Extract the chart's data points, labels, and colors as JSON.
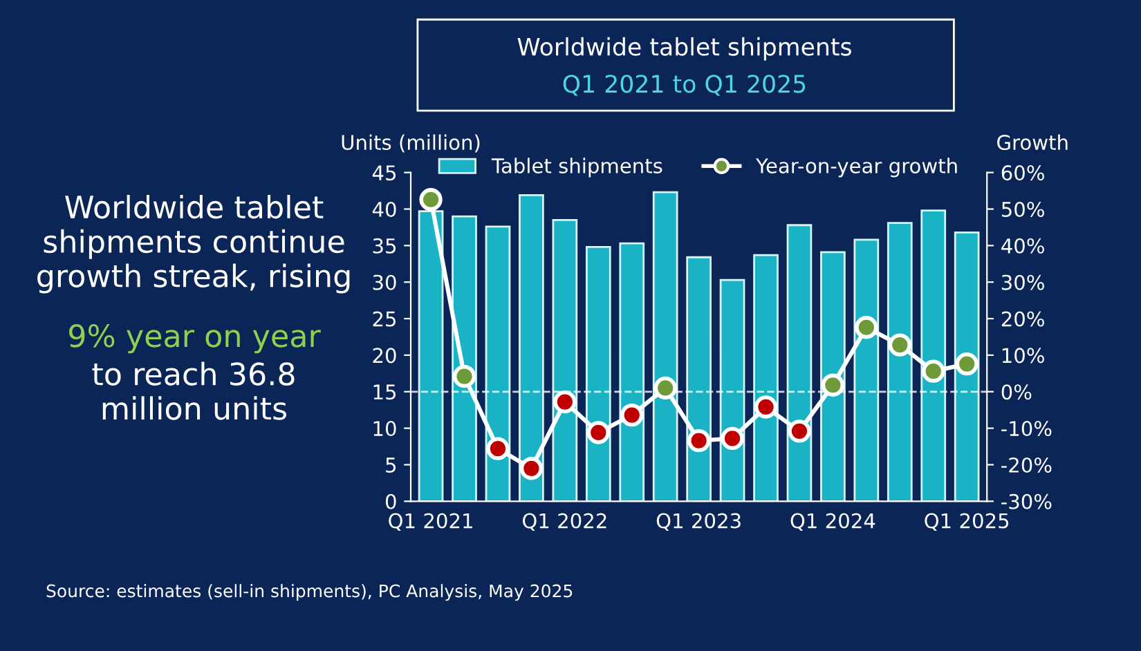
{
  "chart_data": {
    "type": "bar",
    "title": "Worldwide tablet shipments",
    "subtitle": "Q1 2021 to Q1 2025",
    "ylabel": "Units (million)",
    "y2label": "Growth",
    "categories": [
      "Q1 2021",
      null,
      null,
      null,
      "Q1 2022",
      null,
      null,
      null,
      "Q1 2023",
      null,
      null,
      null,
      "Q1 2024",
      null,
      null,
      null,
      "Q1 2025"
    ],
    "series": [
      {
        "name": "Tablet shipments",
        "color": "#1ab3c6",
        "values": [
          39.7,
          39.0,
          37.6,
          41.9,
          38.5,
          34.8,
          35.3,
          42.3,
          33.4,
          30.3,
          33.7,
          37.8,
          34.1,
          35.8,
          38.1,
          39.8,
          36.8
        ]
      },
      {
        "name": "Year-on-year growth",
        "type": "line",
        "axis": "y2",
        "color": "#ffffff",
        "marker": "circle",
        "line_style": "solid",
        "colors": [
          "#6e9a3a",
          "#6e9a3a",
          "#c00000",
          "#c00000",
          "#c00000",
          "#c00000",
          "#c00000",
          "#6e9a3a",
          "#c00000",
          "#c00000",
          "#c00000",
          "#c00000",
          "#6e9a3a",
          "#6e9a3a",
          "#6e9a3a",
          "#6e9a3a",
          "#6e9a3a"
        ],
        "values": [
          52.6,
          4.2,
          -15.6,
          -21,
          -2.8,
          -11.2,
          -6.4,
          1,
          -13.4,
          -12.8,
          -4.2,
          -10.8,
          1.8,
          17.6,
          12.8,
          5.6,
          7.6
        ]
      }
    ],
    "ylim": [
      0,
      45
    ],
    "yticks": [
      0,
      5,
      10,
      15,
      20,
      25,
      30,
      35,
      40,
      45
    ],
    "y2lim": [
      -30,
      60
    ],
    "y2ticks": [
      {
        "value": -30,
        "label": "-30%"
      },
      {
        "value": -20,
        "label": "-20%"
      },
      {
        "value": -10,
        "label": "-10%"
      },
      {
        "value": 0,
        "label": "0%"
      },
      {
        "value": 10,
        "label": "10%"
      },
      {
        "value": 20,
        "label": "20%"
      },
      {
        "value": 30,
        "label": "30%"
      },
      {
        "value": 40,
        "label": "40%"
      },
      {
        "value": 50,
        "label": "50%"
      },
      {
        "value": 60,
        "label": "60%"
      }
    ],
    "ref_lines": [
      {
        "axis": "y2",
        "value": 0,
        "color": "#ffffff",
        "line_style": "dashed"
      }
    ],
    "grid": false,
    "legend": "top",
    "annotations": [
      "Worldwide tablet\nshipments continue\ngrowth streak, rising",
      "9% year on year",
      "to reach 36.8\nmillion units",
      "Source: estimates (sell-in shipments), PC Analysis, May 2025"
    ]
  }
}
